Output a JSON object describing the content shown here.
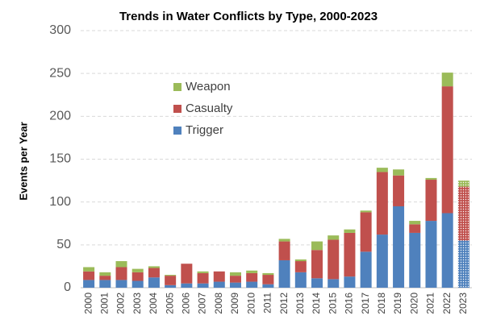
{
  "chart_data": {
    "type": "stacked_bar",
    "title": "Trends in Water Conflicts by Type, 2000-2023",
    "y_label": "Events per Year",
    "categories": [
      "2000",
      "2001",
      "2002",
      "2003",
      "2004",
      "2005",
      "2006",
      "2007",
      "2008",
      "2009",
      "2010",
      "2011",
      "2012",
      "2013",
      "2014",
      "2015",
      "2016",
      "2017",
      "2018",
      "2019",
      "2020",
      "2021",
      "2022",
      "2023"
    ],
    "series": [
      {
        "name": "Trigger",
        "color": "#4f81bd",
        "values": [
          9,
          9,
          9,
          8,
          12,
          3,
          5,
          5,
          7,
          6,
          7,
          4,
          32,
          18,
          11,
          10,
          13,
          42,
          62,
          95,
          64,
          78,
          87,
          55
        ]
      },
      {
        "name": "Casualty",
        "color": "#c0504d",
        "values": [
          10,
          5,
          15,
          10,
          11,
          11,
          23,
          12,
          12,
          8,
          10,
          11,
          22,
          13,
          33,
          46,
          51,
          46,
          73,
          36,
          10,
          48,
          148,
          63
        ]
      },
      {
        "name": "Weapon",
        "color": "#9bbb59",
        "values": [
          5,
          4,
          7,
          4,
          2,
          1,
          0,
          2,
          0,
          4,
          3,
          2,
          3,
          2,
          10,
          5,
          4,
          2,
          5,
          7,
          4,
          2,
          16,
          7
        ]
      }
    ],
    "ylim": [
      0,
      300
    ],
    "yticks": [
      0,
      50,
      100,
      150,
      200,
      250,
      300
    ],
    "grid": true,
    "legend": "upper-left",
    "hatch_last": true
  }
}
